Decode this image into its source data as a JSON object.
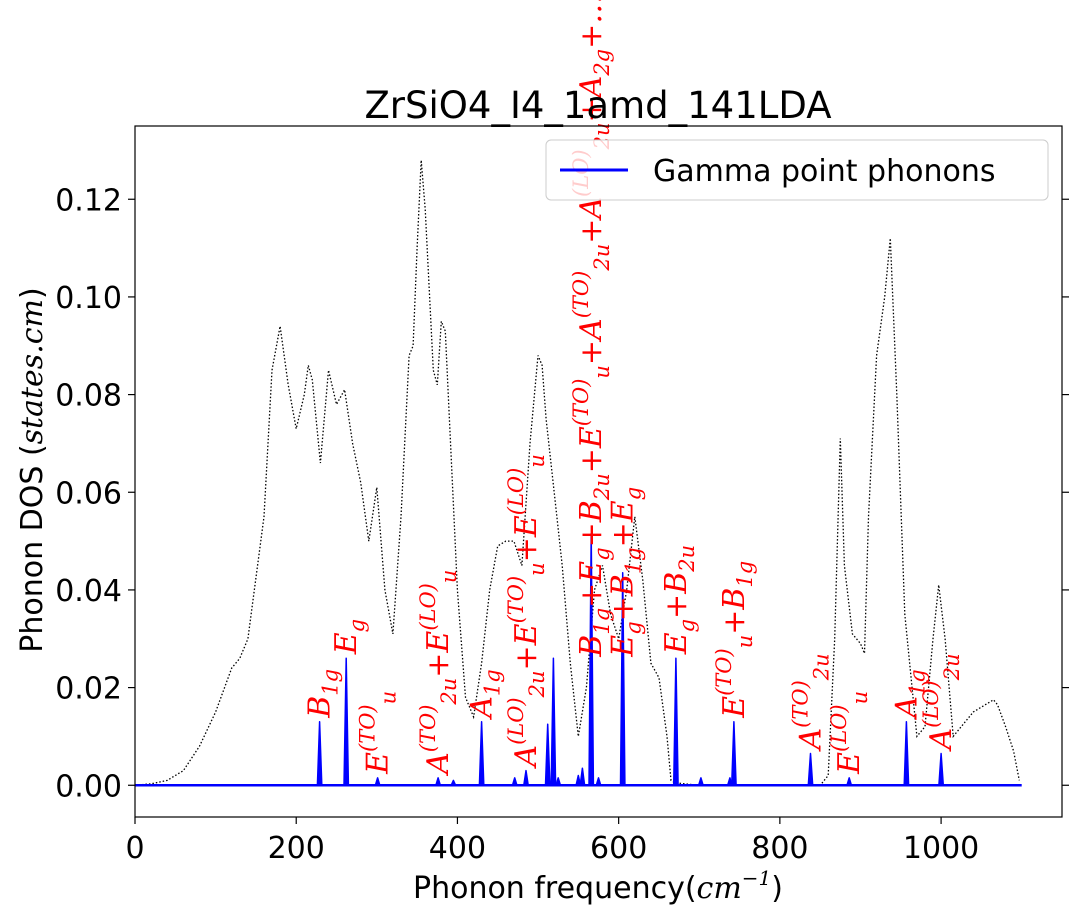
{
  "chart_data": {
    "type": "line",
    "title": "ZrSiO4_I4_1amd_141LDA",
    "xlabel_main": "Phonon frequency(",
    "xlabel_unit": "cm",
    "xlabel_exp": "−1",
    "xlabel_close": ")",
    "ylabel_main": "Phonon DOS (",
    "ylabel_unit": "states.cm",
    "ylabel_close": ")",
    "xlim": [
      0,
      1150
    ],
    "ylim": [
      -0.0065,
      0.135
    ],
    "xticks": [
      0,
      200,
      400,
      600,
      800,
      1000
    ],
    "yticks": [
      0.0,
      0.02,
      0.04,
      0.06,
      0.08,
      0.1,
      0.12
    ],
    "ytick_labels": [
      "0.00",
      "0.02",
      "0.04",
      "0.06",
      "0.08",
      "0.10",
      "0.12"
    ],
    "legend": {
      "placement": "top-right",
      "entries": [
        "Gamma point phonons"
      ]
    },
    "series": [
      {
        "name": "Gamma point phonons",
        "color": "#0000ff",
        "style": "solid",
        "peaks": [
          [
            229,
            0.013
          ],
          [
            262,
            0.026
          ],
          [
            301,
            0.0015
          ],
          [
            376,
            0.0015
          ],
          [
            395,
            0.001
          ],
          [
            430,
            0.013
          ],
          [
            471,
            0.0015
          ],
          [
            485,
            0.003
          ],
          [
            512,
            0.0125
          ],
          [
            519,
            0.026
          ],
          [
            525,
            0.0015
          ],
          [
            550,
            0.002
          ],
          [
            555,
            0.0035
          ],
          [
            566,
            0.0515
          ],
          [
            575,
            0.0015
          ],
          [
            605,
            0.0435
          ],
          [
            671,
            0.026
          ],
          [
            702,
            0.0015
          ],
          [
            738,
            0.0015
          ],
          [
            743,
            0.013
          ],
          [
            838,
            0.0065
          ],
          [
            886,
            0.0015
          ],
          [
            957,
            0.013
          ],
          [
            1000,
            0.0065
          ]
        ]
      },
      {
        "name": "",
        "color": "#000000",
        "style": "dotted",
        "points": [
          [
            0,
            0
          ],
          [
            20,
            0.0003
          ],
          [
            40,
            0.001
          ],
          [
            60,
            0.003
          ],
          [
            80,
            0.008
          ],
          [
            100,
            0.015
          ],
          [
            120,
            0.024
          ],
          [
            130,
            0.026
          ],
          [
            140,
            0.03
          ],
          [
            160,
            0.055
          ],
          [
            170,
            0.085
          ],
          [
            180,
            0.094
          ],
          [
            190,
            0.082
          ],
          [
            200,
            0.073
          ],
          [
            210,
            0.08
          ],
          [
            215,
            0.086
          ],
          [
            220,
            0.083
          ],
          [
            230,
            0.066
          ],
          [
            240,
            0.085
          ],
          [
            250,
            0.078
          ],
          [
            260,
            0.081
          ],
          [
            270,
            0.07
          ],
          [
            280,
            0.062
          ],
          [
            290,
            0.05
          ],
          [
            300,
            0.061
          ],
          [
            310,
            0.04
          ],
          [
            320,
            0.031
          ],
          [
            330,
            0.055
          ],
          [
            340,
            0.088
          ],
          [
            345,
            0.09
          ],
          [
            350,
            0.11
          ],
          [
            355,
            0.128
          ],
          [
            360,
            0.118
          ],
          [
            370,
            0.085
          ],
          [
            375,
            0.082
          ],
          [
            380,
            0.095
          ],
          [
            385,
            0.093
          ],
          [
            390,
            0.075
          ],
          [
            400,
            0.04
          ],
          [
            410,
            0.018
          ],
          [
            420,
            0.014
          ],
          [
            430,
            0.025
          ],
          [
            440,
            0.04
          ],
          [
            450,
            0.049
          ],
          [
            460,
            0.05
          ],
          [
            470,
            0.05
          ],
          [
            480,
            0.045
          ],
          [
            490,
            0.07
          ],
          [
            500,
            0.088
          ],
          [
            505,
            0.086
          ],
          [
            510,
            0.075
          ],
          [
            520,
            0.06
          ],
          [
            530,
            0.045
          ],
          [
            540,
            0.025
          ],
          [
            550,
            0.01
          ],
          [
            560,
            0.02
          ],
          [
            570,
            0.04
          ],
          [
            580,
            0.045
          ],
          [
            590,
            0.035
          ],
          [
            600,
            0.03
          ],
          [
            610,
            0.04
          ],
          [
            620,
            0.055
          ],
          [
            630,
            0.042
          ],
          [
            640,
            0.025
          ],
          [
            650,
            0.022
          ],
          [
            660,
            0.01
          ],
          [
            665,
            0.001
          ],
          [
            670,
            0.0005
          ],
          [
            700,
            0
          ],
          [
            750,
            0
          ],
          [
            820,
            0
          ],
          [
            850,
            0
          ],
          [
            860,
            0.002
          ],
          [
            868,
            0.03
          ],
          [
            875,
            0.071
          ],
          [
            880,
            0.045
          ],
          [
            890,
            0.031
          ],
          [
            900,
            0.029
          ],
          [
            905,
            0.027
          ],
          [
            910,
            0.055
          ],
          [
            920,
            0.088
          ],
          [
            930,
            0.1
          ],
          [
            937,
            0.112
          ],
          [
            945,
            0.08
          ],
          [
            955,
            0.035
          ],
          [
            970,
            0.01
          ],
          [
            980,
            0.012
          ],
          [
            990,
            0.03
          ],
          [
            997,
            0.041
          ],
          [
            1005,
            0.03
          ],
          [
            1015,
            0.01
          ],
          [
            1025,
            0.012
          ],
          [
            1040,
            0.015
          ],
          [
            1060,
            0.017
          ],
          [
            1065,
            0.0175
          ],
          [
            1070,
            0.0165
          ],
          [
            1080,
            0.012
          ],
          [
            1090,
            0.007
          ],
          [
            1097,
            0.001
          ]
        ]
      }
    ],
    "annotations": [
      {
        "x": 229,
        "y": 0.013,
        "parts": [
          [
            "t",
            "B"
          ],
          [
            "s",
            "1g"
          ]
        ]
      },
      {
        "x": 262,
        "y": 0.026,
        "parts": [
          [
            "t",
            "E"
          ],
          [
            "s",
            "g"
          ]
        ]
      },
      {
        "x": 301,
        "y": 0.0015,
        "parts": [
          [
            "t",
            "E"
          ],
          [
            "S",
            "(TO)"
          ],
          [
            "s",
            "u"
          ]
        ]
      },
      {
        "x": 376,
        "y": 0.0015,
        "parts": [
          [
            "t",
            "A"
          ],
          [
            "S",
            "(TO)"
          ],
          [
            "s",
            "2u"
          ],
          [
            "t",
            "+E"
          ],
          [
            "S",
            "(LO)"
          ],
          [
            "s",
            "u"
          ]
        ]
      },
      {
        "x": 430,
        "y": 0.013,
        "parts": [
          [
            "t",
            "A"
          ],
          [
            "s",
            "1g"
          ]
        ]
      },
      {
        "x": 485,
        "y": 0.003,
        "parts": [
          [
            "t",
            "A"
          ],
          [
            "S",
            "(LO)"
          ],
          [
            "s",
            "2u"
          ],
          [
            "t",
            "+E"
          ],
          [
            "S",
            "(TO)"
          ],
          [
            "s",
            "u"
          ],
          [
            "t",
            "+E"
          ],
          [
            "S",
            "(LO)"
          ],
          [
            "s",
            "u"
          ]
        ]
      },
      {
        "x": 566,
        "y": 0.0255,
        "parts": [
          [
            "t",
            "B"
          ],
          [
            "s",
            "1g"
          ],
          [
            "t",
            "+E"
          ],
          [
            "s",
            "g"
          ],
          [
            "t",
            "+B"
          ],
          [
            "s",
            "2u"
          ],
          [
            "t",
            "+E"
          ],
          [
            "S",
            "(TO)"
          ],
          [
            "s",
            "u"
          ],
          [
            "t",
            "+A"
          ],
          [
            "S",
            "(TO)"
          ],
          [
            "s",
            "2u"
          ],
          [
            "t",
            "+A"
          ],
          [
            "S",
            "(LO)"
          ],
          [
            "s",
            "2u"
          ],
          [
            "t",
            "+A"
          ],
          [
            "s",
            "2g"
          ],
          [
            "t",
            "+…"
          ]
        ]
      },
      {
        "x": 605,
        "y": 0.0255,
        "parts": [
          [
            "t",
            "E"
          ],
          [
            "s",
            "g"
          ],
          [
            "t",
            "+B"
          ],
          [
            "s",
            "1g"
          ],
          [
            "t",
            "+E"
          ],
          [
            "s",
            "g"
          ]
        ]
      },
      {
        "x": 671,
        "y": 0.026,
        "parts": [
          [
            "t",
            "E"
          ],
          [
            "s",
            "g"
          ],
          [
            "t",
            "+B"
          ],
          [
            "s",
            "2u"
          ]
        ]
      },
      {
        "x": 743,
        "y": 0.013,
        "parts": [
          [
            "t",
            "E"
          ],
          [
            "S",
            "(TO)"
          ],
          [
            "s",
            "u"
          ],
          [
            "t",
            "+B"
          ],
          [
            "s",
            "1g"
          ]
        ]
      },
      {
        "x": 838,
        "y": 0.0065,
        "parts": [
          [
            "t",
            "A"
          ],
          [
            "S",
            "(TO)"
          ],
          [
            "s",
            "2u"
          ]
        ]
      },
      {
        "x": 886,
        "y": 0.0015,
        "parts": [
          [
            "t",
            "E"
          ],
          [
            "S",
            "(LO)"
          ],
          [
            "s",
            "u"
          ]
        ]
      },
      {
        "x": 957,
        "y": 0.013,
        "parts": [
          [
            "t",
            "A"
          ],
          [
            "s",
            "1g"
          ]
        ]
      },
      {
        "x": 1000,
        "y": 0.0065,
        "parts": [
          [
            "t",
            "A"
          ],
          [
            "S",
            "(LO)"
          ],
          [
            "s",
            "2u"
          ]
        ]
      }
    ]
  }
}
